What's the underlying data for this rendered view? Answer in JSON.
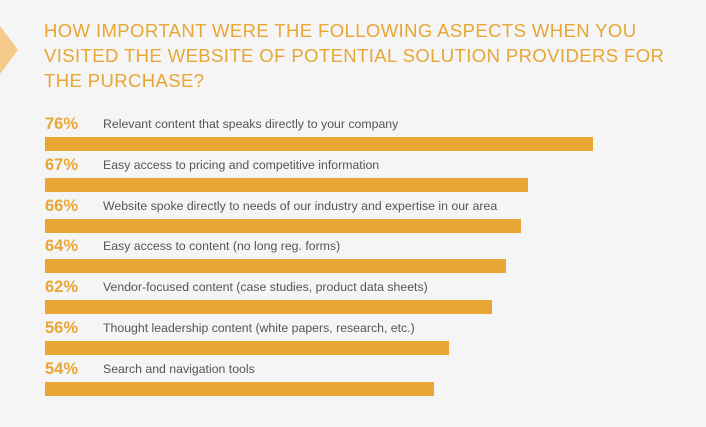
{
  "title": "HOW IMPORTANT WERE THE FOLLOWING ASPECTS WHEN YOU VISITED THE WEBSITE OF POTENTIAL SOLUTION PROVIDERS FOR THE PURCHASE?",
  "colors": {
    "accent": "#e8a634",
    "label_text": "#555555",
    "background": "#f5f5f5",
    "corner_tab": "#f6c98a"
  },
  "chart_data": {
    "type": "bar",
    "orientation": "horizontal",
    "title": "HOW IMPORTANT WERE THE FOLLOWING ASPECTS WHEN YOU VISITED THE WEBSITE OF POTENTIAL SOLUTION PROVIDERS FOR THE PURCHASE?",
    "categories": [
      "Relevant content that speaks directly to your company",
      "Easy access to pricing and competitive information",
      "Website spoke directly to needs of our industry and expertise in our area",
      "Easy access to content (no long reg. forms)",
      "Vendor-focused content (case studies, product data sheets)",
      "Thought leadership content (white papers, research, etc.)",
      "Search and navigation tools"
    ],
    "values": [
      76,
      67,
      66,
      64,
      62,
      56,
      54
    ],
    "value_labels": [
      "76%",
      "67%",
      "66%",
      "64%",
      "62%",
      "56%",
      "54%"
    ],
    "unit": "%",
    "grid": false,
    "legend": "none"
  }
}
